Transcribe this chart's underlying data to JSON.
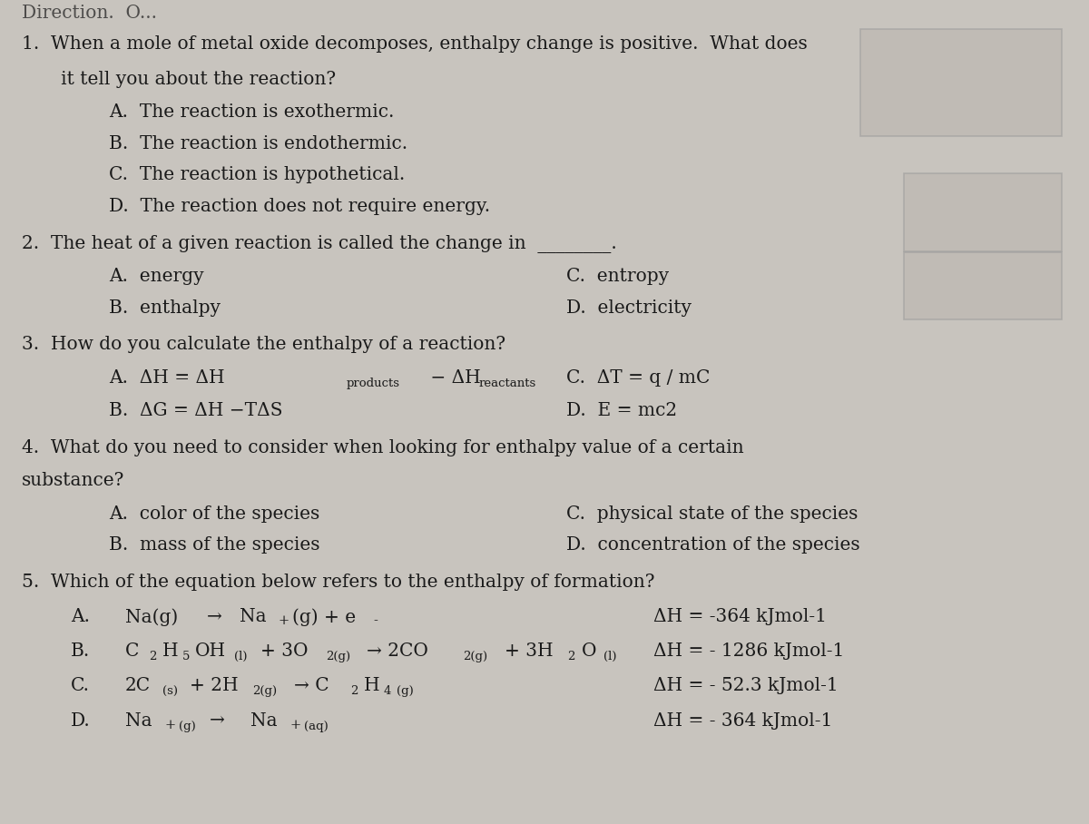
{
  "bg_color": "#c8c4be",
  "text_color": "#1a1a1a",
  "fs": 14.5,
  "fs_sub": 9.5,
  "q1_line1": "1.  When a mole of metal oxide decomposes, enthalpy change is positive.  What does",
  "q1_line2": "   it tell you about the reaction?",
  "q1_A": "A.  The reaction is exothermic.",
  "q1_B": "B.  The reaction is endothermic.",
  "q1_C": "C.  The reaction is hypothetical.",
  "q1_D": "D.  The reaction does not require energy.",
  "q2_line1": "2.  The heat of a given reaction is called the change in  ________.",
  "q2_A": "A.  energy",
  "q2_B": "B.  enthalpy",
  "q2_C": "C.  entropy",
  "q2_D": "D.  electricity",
  "q3_line1": "3.  How do you calculate the enthalpy of a reaction?",
  "q3_A1": "A.  ΔH = ΔH",
  "q3_A_sub1": "products",
  "q3_A2": " − ΔH",
  "q3_A_sub2": "reactants",
  "q3_B": "B.  ΔG = ΔH −TΔS",
  "q3_C": "C.  ΔT = q / mC",
  "q3_D": "D.  E = mc2",
  "q4_line1": "4.  What do you need to consider when looking for enthalpy value of a certain",
  "q4_line2": "substance?",
  "q4_A": "A.  color of the species",
  "q4_B": "B.  mass of the species",
  "q4_C": "C.  physical state of the species",
  "q4_D": "D.  concentration of the species",
  "q5_line1": "5.  Which of the equation below refers to the enthalpy of formation?",
  "q5_A_label": "A.",
  "q5_A_eq": "Na(g) → Na",
  "q5_A_sup": "+",
  "q5_A_eq2": "(g) + e",
  "q5_A_sup2": "-",
  "q5_B_label": "B.",
  "q5_C_label": "C.",
  "q5_C_eq": "2C",
  "q5_C_sub1": "(s)",
  "q5_C_eq2": " + 2H",
  "q5_C_sub2": "2(g)",
  "q5_C_eq3": " → C",
  "q5_C_sub3": "2",
  "q5_C_eq4": "H",
  "q5_C_sub4": "4",
  "q5_C_eq5": " ",
  "q5_C_sub5": "(g)",
  "q5_D_label": "D.",
  "q5_D_eq": "Na",
  "q5_D_sup1": "+",
  "q5_D_sub1": "(g)",
  "q5_D_eq2": " → Na",
  "q5_D_sup2": "+",
  "q5_D_sub2": "(aq)",
  "dH_A": "ΔH = -364 kJmol-1",
  "dH_B": "ΔH = - 1286 kJmol-1",
  "dH_C": "ΔH = - 52.3 kJmol-1",
  "dH_D": "ΔH = - 364 kJmol-1"
}
